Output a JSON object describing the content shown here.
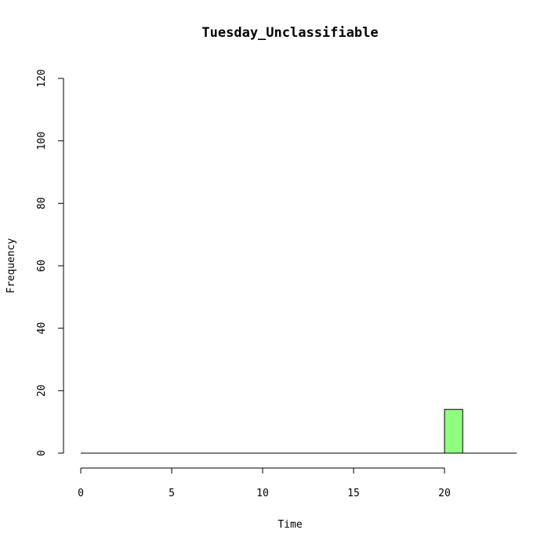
{
  "chart_data": {
    "type": "bar",
    "title": "Tuesday_Unclassifiable",
    "xlabel": "Time",
    "ylabel": "Frequency",
    "xlim": [
      0,
      24
    ],
    "ylim": [
      0,
      120
    ],
    "x_ticks": [
      0,
      5,
      10,
      15,
      20
    ],
    "y_ticks": [
      0,
      20,
      40,
      60,
      80,
      100,
      120
    ],
    "bin_width": 1,
    "bins": [
      {
        "start": 20,
        "end": 21,
        "value": 14
      }
    ],
    "bar_color": "#90ff80",
    "grid": false,
    "legend": false
  }
}
